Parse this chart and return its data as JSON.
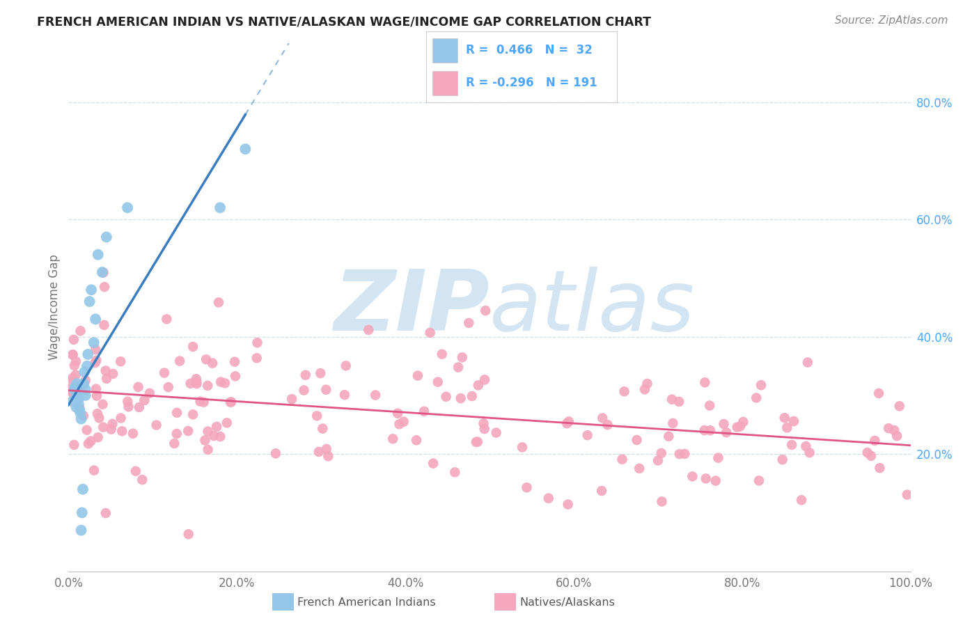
{
  "title": "FRENCH AMERICAN INDIAN VS NATIVE/ALASKAN WAGE/INCOME GAP CORRELATION CHART",
  "source": "Source: ZipAtlas.com",
  "ylabel": "Wage/Income Gap",
  "xlim": [
    0.0,
    1.0
  ],
  "ylim": [
    0.0,
    0.9
  ],
  "xtick_labels": [
    "0.0%",
    "20.0%",
    "40.0%",
    "60.0%",
    "80.0%",
    "100.0%"
  ],
  "xtick_positions": [
    0.0,
    0.2,
    0.4,
    0.6,
    0.8,
    1.0
  ],
  "ytick_labels": [
    "20.0%",
    "40.0%",
    "60.0%",
    "80.0%"
  ],
  "ytick_positions": [
    0.2,
    0.4,
    0.6,
    0.8
  ],
  "blue_R": 0.466,
  "blue_N": 32,
  "pink_R": -0.296,
  "pink_N": 191,
  "blue_color": "#93c6e8",
  "pink_color": "#f4a7bc",
  "blue_line_color": "#3a7dbf",
  "pink_line_color": "#e05585",
  "watermark_color": "#d3e5f2",
  "legend_border_color": "#cccccc",
  "axis_color": "#bbbbbb",
  "grid_color": "#ccddee",
  "tick_label_color": "#777777",
  "right_tick_color": "#4da6ff",
  "title_color": "#222222",
  "source_color": "#888888",
  "ylabel_color": "#777777"
}
